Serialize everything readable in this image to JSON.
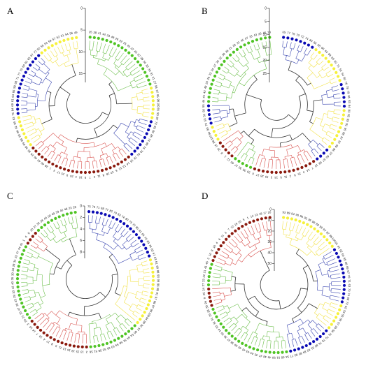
{
  "figure": {
    "palette": {
      "red": "#d9534f",
      "green": "#6cbf4b",
      "blue": "#3a46b0",
      "yellow": "#f2e24a",
      "dark": "#333333",
      "marker_red": "#8b1a0e",
      "marker_green": "#4fc424",
      "marker_blue": "#0a0ab4",
      "marker_yellow": "#f6f13a"
    },
    "panels": [
      {
        "id": "A",
        "label": "A",
        "axis_ticks": [
          "0",
          "5",
          "10",
          "15"
        ],
        "groups": [
          {
            "color": "green",
            "labels": [
              "35",
              "38",
              "41",
              "44",
              "23",
              "48",
              "26",
              "22",
              "25",
              "43",
              "37",
              "45",
              "32",
              "39",
              "34",
              "33",
              "30",
              "31",
              "21",
              "27"
            ]
          },
          {
            "color": "yellow",
            "labels": [
              "94",
              "97",
              "95",
              "96",
              "100",
              "91",
              "93",
              "87"
            ]
          },
          {
            "color": "blue",
            "labels": [
              "73",
              "83",
              "82",
              "85",
              "74",
              "80",
              "76",
              "79",
              "81",
              "78"
            ]
          },
          {
            "color": "red",
            "labels": [
              "19",
              "14",
              "13",
              "12",
              "6",
              "10",
              "18",
              "8",
              "11",
              "2",
              "7",
              "5",
              "16",
              "4",
              "20",
              "9",
              "15",
              "17",
              "3",
              "1",
              "28",
              "40",
              "42",
              "46",
              "24",
              "36"
            ]
          },
          {
            "color": "yellow",
            "labels": [
              "98",
              "99",
              "88",
              "90",
              "86",
              "92",
              "89",
              "63"
            ]
          },
          {
            "color": "blue",
            "labels": [
              "75",
              "84",
              "69",
              "61",
              "64",
              "66",
              "58",
              "68",
              "71",
              "77",
              "70",
              "60",
              "62",
              "65",
              "67",
              "72"
            ]
          },
          {
            "color": "yellow",
            "labels": [
              "50",
              "55",
              "53",
              "59",
              "57",
              "52",
              "51",
              "54",
              "56",
              "49"
            ]
          }
        ]
      },
      {
        "id": "B",
        "label": "B",
        "axis_ticks": [
          "0",
          "5",
          "10",
          "15",
          "20",
          "25"
        ],
        "groups": [
          {
            "color": "blue",
            "labels": [
              "65",
              "77",
              "75",
              "73",
              "72",
              "74",
              "80",
              "82"
            ]
          },
          {
            "color": "yellow",
            "labels": [
              "58",
              "66",
              "64",
              "69",
              "63",
              "62",
              "71",
              "52",
              "54",
              "50"
            ]
          },
          {
            "color": "blue",
            "labels": [
              "76",
              "78",
              "79",
              "81",
              "83",
              "84"
            ]
          },
          {
            "color": "yellow",
            "labels": [
              "93",
              "92",
              "89",
              "91",
              "95",
              "88",
              "87",
              "97",
              "99",
              "86"
            ]
          },
          {
            "color": "blue",
            "labels": [
              "57",
              "60",
              "67",
              "68"
            ]
          },
          {
            "color": "red",
            "labels": [
              "10",
              "7",
              "14",
              "4",
              "15",
              "9",
              "2",
              "11",
              "5",
              "13",
              "3",
              "19",
              "18",
              "17",
              "6"
            ]
          },
          {
            "color": "green",
            "labels": [
              "29",
              "35",
              "30",
              "27",
              "40"
            ]
          },
          {
            "color": "red",
            "labels": [
              "12",
              "1",
              "8",
              "20",
              "16"
            ]
          },
          {
            "color": "yellow",
            "labels": [
              "98",
              "100",
              "94",
              "90"
            ]
          },
          {
            "color": "blue",
            "labels": [
              "70",
              "53",
              "51",
              "56",
              "55"
            ]
          },
          {
            "color": "green",
            "labels": [
              "44",
              "41",
              "42",
              "48",
              "24",
              "26",
              "32",
              "34",
              "37",
              "39",
              "22",
              "38",
              "36",
              "21",
              "28",
              "31",
              "45",
              "47",
              "33",
              "43",
              "25",
              "46",
              "23"
            ]
          }
        ]
      },
      {
        "id": "C",
        "label": "C",
        "axis_ticks": [
          "0",
          "2",
          "4",
          "6",
          "8"
        ],
        "groups": [
          {
            "color": "blue",
            "labels": [
              "75",
              "70",
              "71",
              "68",
              "77",
              "82",
              "79",
              "83",
              "74",
              "80",
              "73",
              "72",
              "85",
              "81",
              "84",
              "76",
              "69",
              "78",
              "62",
              "67"
            ]
          },
          {
            "color": "yellow",
            "labels": [
              "63",
              "61",
              "90",
              "98",
              "93",
              "99",
              "96",
              "88",
              "91",
              "97",
              "86",
              "87",
              "95",
              "100",
              "94",
              "89",
              "92"
            ]
          },
          {
            "color": "green",
            "labels": [
              "57",
              "60",
              "54",
              "64",
              "52",
              "66",
              "59",
              "53",
              "65",
              "55",
              "58",
              "51",
              "56"
            ]
          },
          {
            "color": "red",
            "labels": [
              "2",
              "13",
              "15",
              "19",
              "16",
              "12",
              "11",
              "5",
              "8",
              "17",
              "4",
              "18",
              "7",
              "14",
              "10",
              "3"
            ]
          },
          {
            "color": "green",
            "labels": [
              "24",
              "21",
              "25",
              "47",
              "36",
              "43",
              "29",
              "33",
              "42",
              "40",
              "35",
              "30",
              "34",
              "28",
              "31",
              "22",
              "37",
              "44",
              "41"
            ]
          },
          {
            "color": "red",
            "labels": [
              "1",
              "6",
              "9",
              "20"
            ]
          },
          {
            "color": "green",
            "labels": [
              "27",
              "32",
              "38",
              "45",
              "50",
              "49",
              "39",
              "46",
              "48",
              "23",
              "26"
            ]
          }
        ]
      },
      {
        "id": "D",
        "label": "D",
        "axis_ticks": [
          "0",
          "10",
          "20",
          "30",
          "40",
          "50"
        ],
        "groups": [
          {
            "color": "yellow",
            "labels": [
              "93",
              "89",
              "94",
              "90",
              "96",
              "92",
              "95",
              "98",
              "88",
              "99",
              "97",
              "87",
              "86",
              "100",
              "91"
            ]
          },
          {
            "color": "blue",
            "labels": [
              "61",
              "62",
              "64",
              "65",
              "66",
              "69",
              "67",
              "70",
              "71",
              "63",
              "73",
              "74",
              "68",
              "72"
            ]
          },
          {
            "color": "yellow",
            "labels": [
              "52",
              "53",
              "55",
              "56",
              "57",
              "59",
              "58"
            ]
          },
          {
            "color": "blue",
            "labels": [
              "75",
              "79",
              "78",
              "76",
              "80",
              "81",
              "82",
              "84",
              "85",
              "83",
              "77"
            ]
          },
          {
            "color": "green",
            "labels": [
              "54",
              "60",
              "51",
              "50",
              "49",
              "48",
              "47",
              "45",
              "44",
              "43",
              "42"
            ]
          },
          {
            "color": "green",
            "labels": [
              "40",
              "39",
              "38",
              "37",
              "36",
              "35",
              "34",
              "33",
              "32",
              "31",
              "29",
              "28"
            ]
          },
          {
            "color": "red",
            "labels": [
              "30",
              "26",
              "9",
              "25",
              "24"
            ]
          },
          {
            "color": "green",
            "labels": [
              "27",
              "23",
              "22",
              "21",
              "41",
              "46"
            ]
          },
          {
            "color": "red",
            "labels": [
              "2",
              "10",
              "8",
              "16",
              "4",
              "6",
              "11",
              "3",
              "7",
              "12",
              "19",
              "15",
              "5",
              "1",
              "14",
              "13",
              "18",
              "17",
              "20"
            ]
          }
        ]
      }
    ]
  }
}
